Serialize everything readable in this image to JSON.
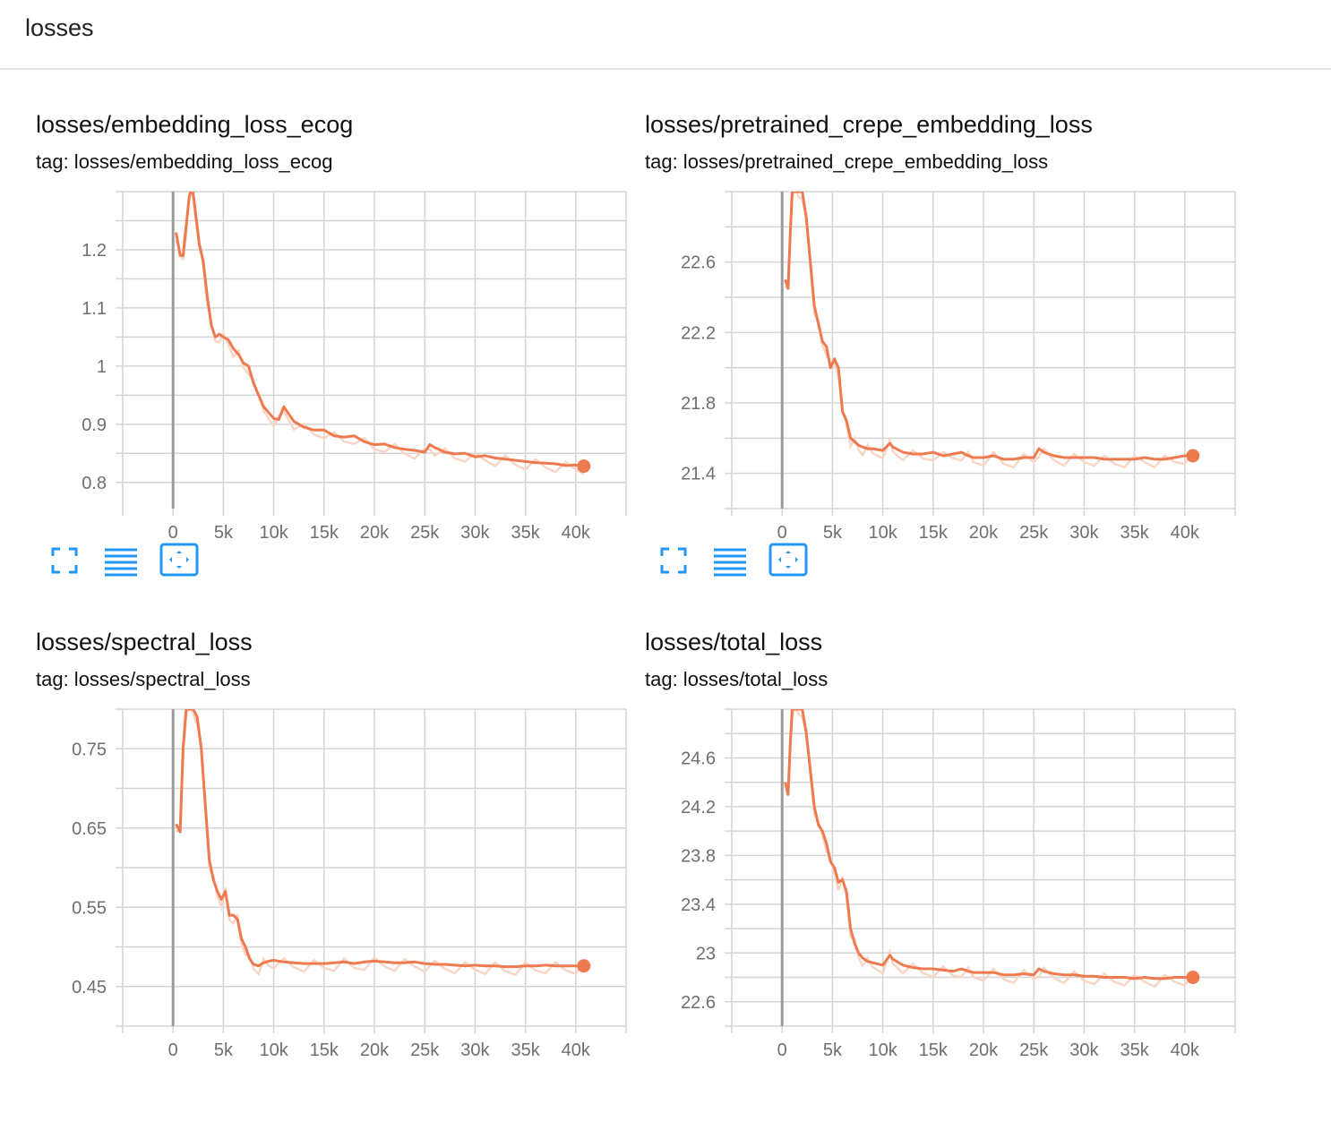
{
  "group": {
    "title": "losses"
  },
  "colors": {
    "line": "#ee7a4f",
    "line_raw": "#f9d5c6",
    "grid": "#d4d4d4",
    "zero_axis": "#9a9a9a"
  },
  "icons": {
    "fullscreen": "fullscreen-icon",
    "log_scale": "list-lines-icon",
    "fit_domain": "fit-domain-icon"
  },
  "cards": [
    {
      "title": "losses/embedding_loss_ecog",
      "tag": "tag: losses/embedding_loss_ecog",
      "chart_data": {
        "type": "line",
        "title": "losses/embedding_loss_ecog",
        "xlabel": "",
        "ylabel": "",
        "x_ticks": [
          "0",
          "5k",
          "10k",
          "15k",
          "20k",
          "25k",
          "30k",
          "35k",
          "40k"
        ],
        "x_tick_values": [
          0,
          5000,
          10000,
          15000,
          20000,
          25000,
          30000,
          35000,
          40000
        ],
        "y_ticks": [
          "0.8",
          "0.9",
          "1",
          "1.1",
          "1.2"
        ],
        "y_tick_values": [
          0.8,
          0.9,
          1.0,
          1.1,
          1.2
        ],
        "xlim": [
          -5000,
          45000
        ],
        "ylim": [
          0.755,
          1.3
        ],
        "grid": true,
        "series": [
          {
            "x": [
              300,
              700,
              1000,
              1300,
              1600,
              1900,
              2200,
              2600,
              3000,
              3400,
              3800,
              4200,
              4600,
              5000,
              5500,
              6000,
              6500,
              7000,
              7500,
              8000,
              9000,
              10000,
              10500,
              11000,
              12000,
              13000,
              14000,
              15000,
              16000,
              17000,
              18000,
              19000,
              20000,
              21000,
              22000,
              23000,
              24000,
              25000,
              25500,
              26000,
              27000,
              28000,
              29000,
              30000,
              31000,
              32000,
              33000,
              34000,
              35000,
              36000,
              37000,
              38000,
              39000,
              40000,
              40800
            ],
            "y": [
              1.23,
              1.19,
              1.19,
              1.24,
              1.29,
              1.31,
              1.27,
              1.21,
              1.18,
              1.12,
              1.07,
              1.05,
              1.055,
              1.05,
              1.045,
              1.03,
              1.02,
              1.005,
              1.0,
              0.97,
              0.93,
              0.91,
              0.908,
              0.93,
              0.905,
              0.895,
              0.89,
              0.89,
              0.88,
              0.878,
              0.88,
              0.87,
              0.865,
              0.866,
              0.86,
              0.857,
              0.855,
              0.852,
              0.865,
              0.86,
              0.852,
              0.849,
              0.85,
              0.844,
              0.846,
              0.842,
              0.84,
              0.838,
              0.836,
              0.834,
              0.833,
              0.832,
              0.829,
              0.83,
              0.828
            ]
          }
        ]
      }
    },
    {
      "title": "losses/pretrained_crepe_embedding_loss",
      "tag": "tag: losses/pretrained_crepe_embedding_loss",
      "chart_data": {
        "type": "line",
        "title": "losses/pretrained_crepe_embedding_loss",
        "xlabel": "",
        "ylabel": "",
        "x_ticks": [
          "0",
          "5k",
          "10k",
          "15k",
          "20k",
          "25k",
          "30k",
          "35k",
          "40k"
        ],
        "x_tick_values": [
          0,
          5000,
          10000,
          15000,
          20000,
          25000,
          30000,
          35000,
          40000
        ],
        "y_ticks": [
          "21.4",
          "21.8",
          "22.2",
          "22.6"
        ],
        "y_tick_values": [
          21.4,
          21.8,
          22.2,
          22.6
        ],
        "xlim": [
          -5000,
          45000
        ],
        "ylim": [
          21.2,
          23.0
        ],
        "grid": true,
        "series": [
          {
            "x": [
              300,
              600,
              800,
              1000,
              1300,
              1600,
              2000,
              2400,
              2800,
              3200,
              3600,
              4000,
              4400,
              4800,
              5200,
              5600,
              6000,
              6400,
              6800,
              7200,
              7600,
              8000,
              8500,
              9000,
              10000,
              10700,
              11000,
              12000,
              13000,
              14000,
              15000,
              16000,
              17000,
              17800,
              18500,
              19000,
              20000,
              21000,
              22000,
              23000,
              24000,
              25000,
              25500,
              26000,
              27000,
              28000,
              29000,
              30000,
              31000,
              32000,
              33000,
              34000,
              35000,
              36000,
              37000,
              38000,
              39000,
              40000,
              40800
            ],
            "y": [
              22.5,
              22.45,
              22.75,
              23.0,
              23.0,
              23.0,
              23.0,
              22.85,
              22.6,
              22.35,
              22.25,
              22.15,
              22.12,
              22.0,
              22.05,
              22.0,
              21.75,
              21.7,
              21.6,
              21.58,
              21.56,
              21.55,
              21.54,
              21.54,
              21.53,
              21.57,
              21.55,
              21.52,
              21.51,
              21.51,
              21.52,
              21.5,
              21.51,
              21.52,
              21.5,
              21.49,
              21.49,
              21.5,
              21.48,
              21.48,
              21.49,
              21.49,
              21.54,
              21.52,
              21.5,
              21.49,
              21.49,
              21.49,
              21.49,
              21.48,
              21.48,
              21.48,
              21.48,
              21.49,
              21.48,
              21.48,
              21.49,
              21.5,
              21.5
            ]
          }
        ]
      }
    },
    {
      "title": "losses/spectral_loss",
      "tag": "tag: losses/spectral_loss",
      "chart_data": {
        "type": "line",
        "title": "losses/spectral_loss",
        "xlabel": "",
        "ylabel": "",
        "x_ticks": [
          "0",
          "5k",
          "10k",
          "15k",
          "20k",
          "25k",
          "30k",
          "35k",
          "40k"
        ],
        "x_tick_values": [
          0,
          5000,
          10000,
          15000,
          20000,
          25000,
          30000,
          35000,
          40000
        ],
        "y_ticks": [
          "0.45",
          "0.55",
          "0.65",
          "0.75"
        ],
        "y_tick_values": [
          0.45,
          0.55,
          0.65,
          0.75
        ],
        "xlim": [
          -5000,
          45000
        ],
        "ylim": [
          0.4,
          0.8
        ],
        "grid": true,
        "series": [
          {
            "x": [
              300,
              700,
              1000,
              1300,
              1600,
              2000,
              2400,
              2800,
              3200,
              3600,
              4000,
              4400,
              4800,
              5200,
              5600,
              6000,
              6400,
              6800,
              7200,
              7600,
              8000,
              8500,
              9000,
              9500,
              10000,
              11000,
              12000,
              13000,
              14000,
              15000,
              16000,
              17000,
              18000,
              19000,
              20000,
              21000,
              22000,
              23000,
              24000,
              25000,
              26000,
              27000,
              28000,
              29000,
              30000,
              31000,
              32000,
              33000,
              34000,
              35000,
              36000,
              37000,
              38000,
              39000,
              40000,
              40800
            ],
            "y": [
              0.655,
              0.645,
              0.75,
              0.8,
              0.8,
              0.8,
              0.79,
              0.75,
              0.68,
              0.61,
              0.585,
              0.57,
              0.56,
              0.57,
              0.54,
              0.54,
              0.535,
              0.51,
              0.5,
              0.485,
              0.478,
              0.476,
              0.48,
              0.482,
              0.483,
              0.481,
              0.48,
              0.479,
              0.479,
              0.479,
              0.48,
              0.481,
              0.479,
              0.481,
              0.482,
              0.481,
              0.48,
              0.48,
              0.481,
              0.479,
              0.478,
              0.478,
              0.477,
              0.476,
              0.477,
              0.476,
              0.476,
              0.475,
              0.475,
              0.476,
              0.476,
              0.477,
              0.476,
              0.476,
              0.476,
              0.476
            ]
          }
        ]
      }
    },
    {
      "title": "losses/total_loss",
      "tag": "tag: losses/total_loss",
      "chart_data": {
        "type": "line",
        "title": "losses/total_loss",
        "xlabel": "",
        "ylabel": "",
        "x_ticks": [
          "0",
          "5k",
          "10k",
          "15k",
          "20k",
          "25k",
          "30k",
          "35k",
          "40k"
        ],
        "x_tick_values": [
          0,
          5000,
          10000,
          15000,
          20000,
          25000,
          30000,
          35000,
          40000
        ],
        "y_ticks": [
          "22.6",
          "23",
          "23.4",
          "23.8",
          "24.2",
          "24.6"
        ],
        "y_tick_values": [
          22.6,
          23.0,
          23.4,
          23.8,
          24.2,
          24.6
        ],
        "xlim": [
          -5000,
          45000
        ],
        "ylim": [
          22.4,
          25.0
        ],
        "grid": true,
        "series": [
          {
            "x": [
              300,
              600,
              800,
              1000,
              1300,
              1600,
              2000,
              2400,
              2800,
              3200,
              3600,
              4000,
              4400,
              4800,
              5200,
              5600,
              6000,
              6400,
              6800,
              7200,
              7600,
              8000,
              8500,
              9000,
              10000,
              10700,
              11000,
              12000,
              13000,
              14000,
              15000,
              16000,
              17000,
              17800,
              18500,
              19000,
              20000,
              21000,
              22000,
              23000,
              24000,
              25000,
              25500,
              26000,
              27000,
              28000,
              29000,
              30000,
              31000,
              32000,
              33000,
              34000,
              35000,
              36000,
              37000,
              38000,
              39000,
              40000,
              40800
            ],
            "y": [
              24.4,
              24.3,
              24.7,
              25.0,
              25.0,
              25.0,
              25.0,
              24.8,
              24.5,
              24.2,
              24.05,
              24.0,
              23.9,
              23.75,
              23.7,
              23.58,
              23.6,
              23.5,
              23.2,
              23.08,
              23.0,
              22.96,
              22.93,
              22.92,
              22.9,
              22.98,
              22.95,
              22.9,
              22.88,
              22.87,
              22.87,
              22.86,
              22.85,
              22.87,
              22.85,
              22.84,
              22.84,
              22.84,
              22.82,
              22.82,
              22.83,
              22.82,
              22.87,
              22.85,
              22.83,
              22.82,
              22.82,
              22.81,
              22.81,
              22.8,
              22.8,
              22.8,
              22.79,
              22.8,
              22.79,
              22.79,
              22.8,
              22.8,
              22.8
            ]
          }
        ]
      }
    }
  ]
}
